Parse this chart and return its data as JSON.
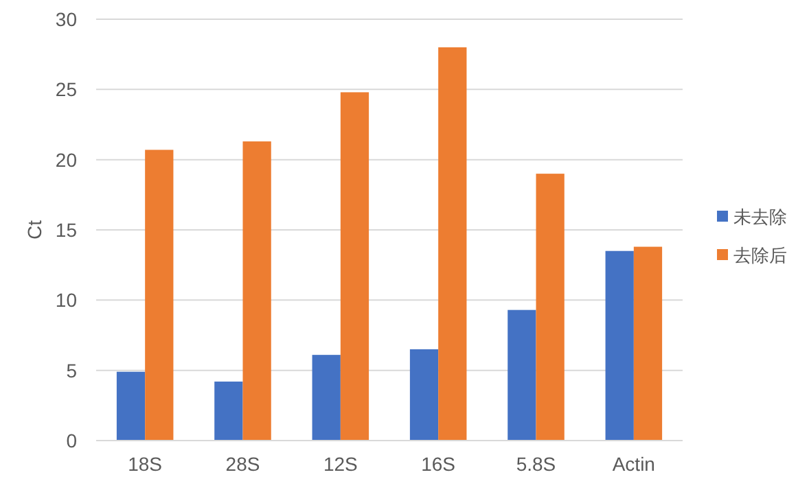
{
  "chart_data": {
    "type": "bar",
    "ylabel": "Ct",
    "categories": [
      "18S",
      "28S",
      "12S",
      "16S",
      "5.8S",
      "Actin"
    ],
    "series": [
      {
        "name": "未去除",
        "color": "#4472c4",
        "values": [
          4.9,
          4.2,
          6.1,
          6.5,
          9.3,
          13.5
        ]
      },
      {
        "name": "去除后",
        "color": "#ed7d31",
        "values": [
          20.7,
          21.3,
          24.8,
          28.0,
          19.0,
          13.8
        ]
      }
    ],
    "ylim": [
      0,
      30
    ],
    "yticks": [
      0,
      5,
      10,
      15,
      20,
      25,
      30
    ],
    "grid": "y",
    "legend": "right"
  }
}
